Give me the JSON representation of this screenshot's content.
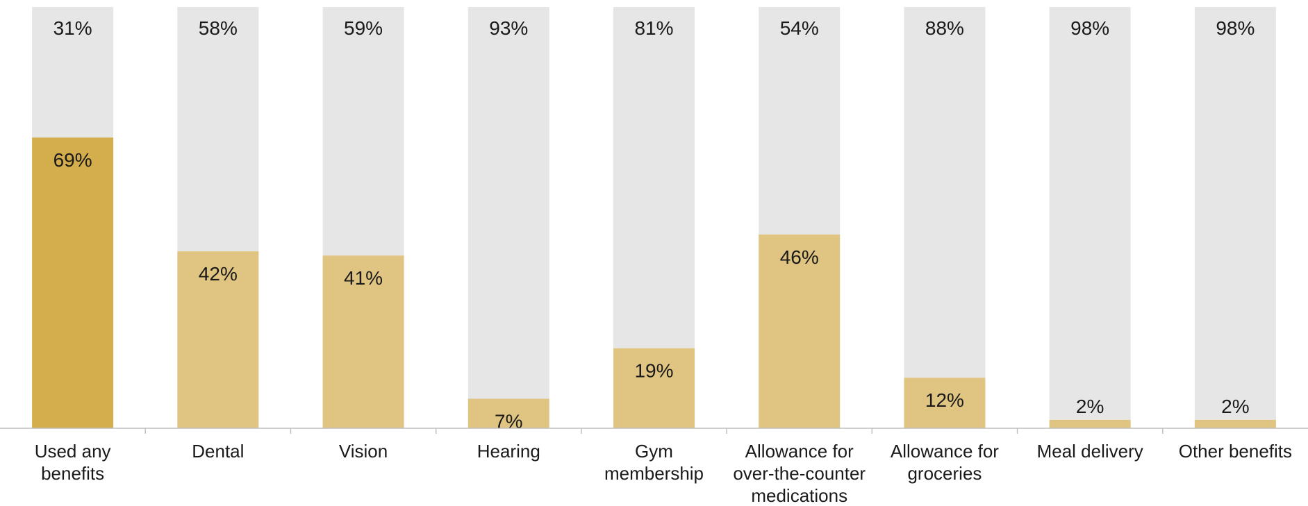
{
  "chart_data": {
    "type": "bar",
    "stacked": true,
    "categories": [
      [
        "Used any",
        "benefits"
      ],
      [
        "Dental"
      ],
      [
        "Vision"
      ],
      [
        "Hearing"
      ],
      [
        "Gym",
        "membership"
      ],
      [
        "Allowance for",
        "over-the-counter",
        "medications"
      ],
      [
        "Allowance for",
        "groceries"
      ],
      [
        "Meal delivery"
      ],
      [
        "Other benefits"
      ]
    ],
    "series": [
      {
        "values": [
          69,
          42,
          41,
          7,
          19,
          46,
          12,
          2,
          2
        ],
        "labels": [
          "69%",
          "42%",
          "41%",
          "7%",
          "19%",
          "46%",
          "12%",
          "2%",
          "2%"
        ],
        "colors": [
          "#d4ad4c",
          "#e0c482",
          "#e0c482",
          "#e0c482",
          "#e0c482",
          "#e0c482",
          "#e0c482",
          "#e0c482",
          "#e0c482"
        ]
      },
      {
        "values": [
          31,
          58,
          59,
          93,
          81,
          54,
          88,
          98,
          98
        ],
        "labels": [
          "31%",
          "58%",
          "59%",
          "93%",
          "81%",
          "54%",
          "88%",
          "98%",
          "98%"
        ],
        "color": "#e6e6e6"
      }
    ],
    "ylim": [
      0,
      100
    ],
    "grid": false,
    "legend": "none",
    "axis_color": "#bfbfbf"
  }
}
